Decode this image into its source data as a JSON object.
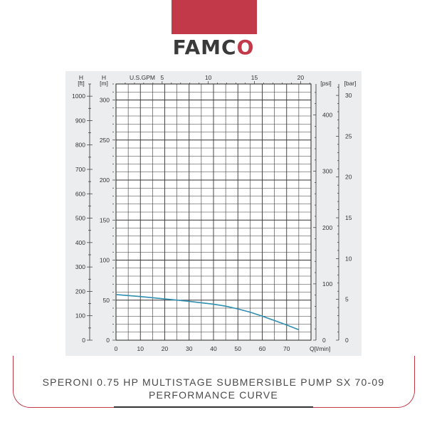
{
  "brand": {
    "logo_text": "FAMC",
    "logo_mark": "O",
    "accent_color": "#c23a4a"
  },
  "caption": {
    "line1": "SPERONI 0.75 HP MULTISTAGE SUBMERSIBLE PUMP SX 70-09",
    "line2": "PERFORMANCE CURVE"
  },
  "chart_data": {
    "type": "line",
    "x_axis": {
      "label": "Q[l/min]",
      "range": [
        0,
        80
      ],
      "ticks": [
        0,
        10,
        20,
        30,
        40,
        50,
        60,
        70
      ]
    },
    "top_axis": {
      "label": "U.S.GPM",
      "range": [
        0,
        21.13
      ],
      "ticks": [
        5,
        10,
        15,
        20
      ]
    },
    "left_axis_ft": {
      "label": "H",
      "unit": "[ft]",
      "range": [
        0,
        1050
      ],
      "ticks": [
        0,
        100,
        200,
        300,
        400,
        500,
        600,
        700,
        800,
        900,
        1000
      ]
    },
    "left_axis_m": {
      "label": "H",
      "unit": "[m]",
      "range": [
        0,
        320
      ],
      "ticks": [
        0,
        50,
        100,
        150,
        200,
        250,
        300
      ]
    },
    "right_axis_psi": {
      "unit": "[psi]",
      "range": [
        0,
        455
      ],
      "ticks": [
        0,
        100,
        200,
        300,
        400
      ]
    },
    "right_axis_bar": {
      "unit": "[bar]",
      "range": [
        0,
        31.4
      ],
      "ticks": [
        0,
        5,
        10,
        15,
        20,
        25,
        30
      ]
    },
    "grid": true,
    "series": [
      {
        "color": "#2f8fb0",
        "x": [
          0,
          10,
          20,
          30,
          40,
          45,
          50,
          55,
          60,
          65,
          70,
          75
        ],
        "y": [
          57,
          54.5,
          51.5,
          48.5,
          45,
          42.5,
          39,
          35,
          30,
          24.5,
          19,
          13
        ]
      }
    ]
  }
}
